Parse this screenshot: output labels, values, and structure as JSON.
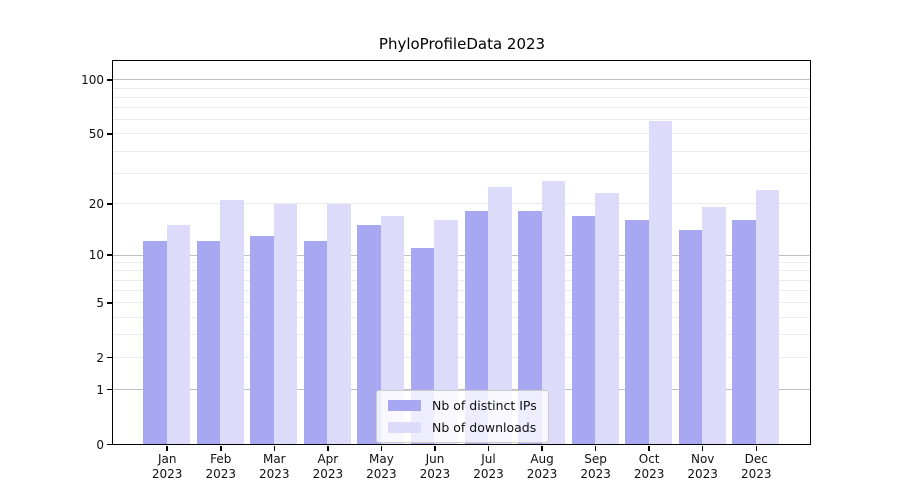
{
  "colors": {
    "ips_bar": "#a7a7f2",
    "downloads_bar": "#dcdcfa",
    "major_grid": "#c0c0c0",
    "minor_grid": "#ebebeb",
    "axis": "#000000",
    "legend_border": "#cccccc",
    "title_text": "#000000"
  },
  "y_axis": {
    "ticks": [
      {
        "value": 100,
        "label": "100"
      },
      {
        "value": 50,
        "label": "50"
      },
      {
        "value": 20,
        "label": "20"
      },
      {
        "value": 10,
        "label": "10"
      },
      {
        "value": 5,
        "label": "5"
      },
      {
        "value": 2,
        "label": "2"
      },
      {
        "value": 1,
        "label": "1"
      },
      {
        "value": 0,
        "label": "0"
      }
    ],
    "major_gridlines": [
      1,
      10,
      100
    ],
    "minor_gridlines": [
      2,
      3,
      4,
      5,
      6,
      7,
      8,
      9,
      20,
      30,
      40,
      50,
      60,
      70,
      80,
      90
    ]
  },
  "chart_data": {
    "type": "bar",
    "title": "PhyloProfileData 2023",
    "categories": [
      "Jan 2023",
      "Feb 2023",
      "Mar 2023",
      "Apr 2023",
      "May 2023",
      "Jun 2023",
      "Jul 2023",
      "Aug 2023",
      "Sep 2023",
      "Oct 2023",
      "Nov 2023",
      "Dec 2023"
    ],
    "series": [
      {
        "name": "Nb of distinct IPs",
        "values": [
          12,
          12,
          13,
          12,
          15,
          11,
          18,
          18,
          17,
          16,
          14,
          16
        ]
      },
      {
        "name": "Nb of downloads",
        "values": [
          15,
          21,
          20,
          20,
          17,
          16,
          25,
          27,
          23,
          59,
          19,
          24
        ]
      }
    ],
    "xlabel": "",
    "ylabel": "",
    "yscale": "log1p",
    "y_tick_values": [
      0,
      1,
      2,
      5,
      10,
      20,
      50,
      100
    ],
    "ylim": [
      0,
      127
    ],
    "grid": true,
    "legend_position": "lower center"
  }
}
